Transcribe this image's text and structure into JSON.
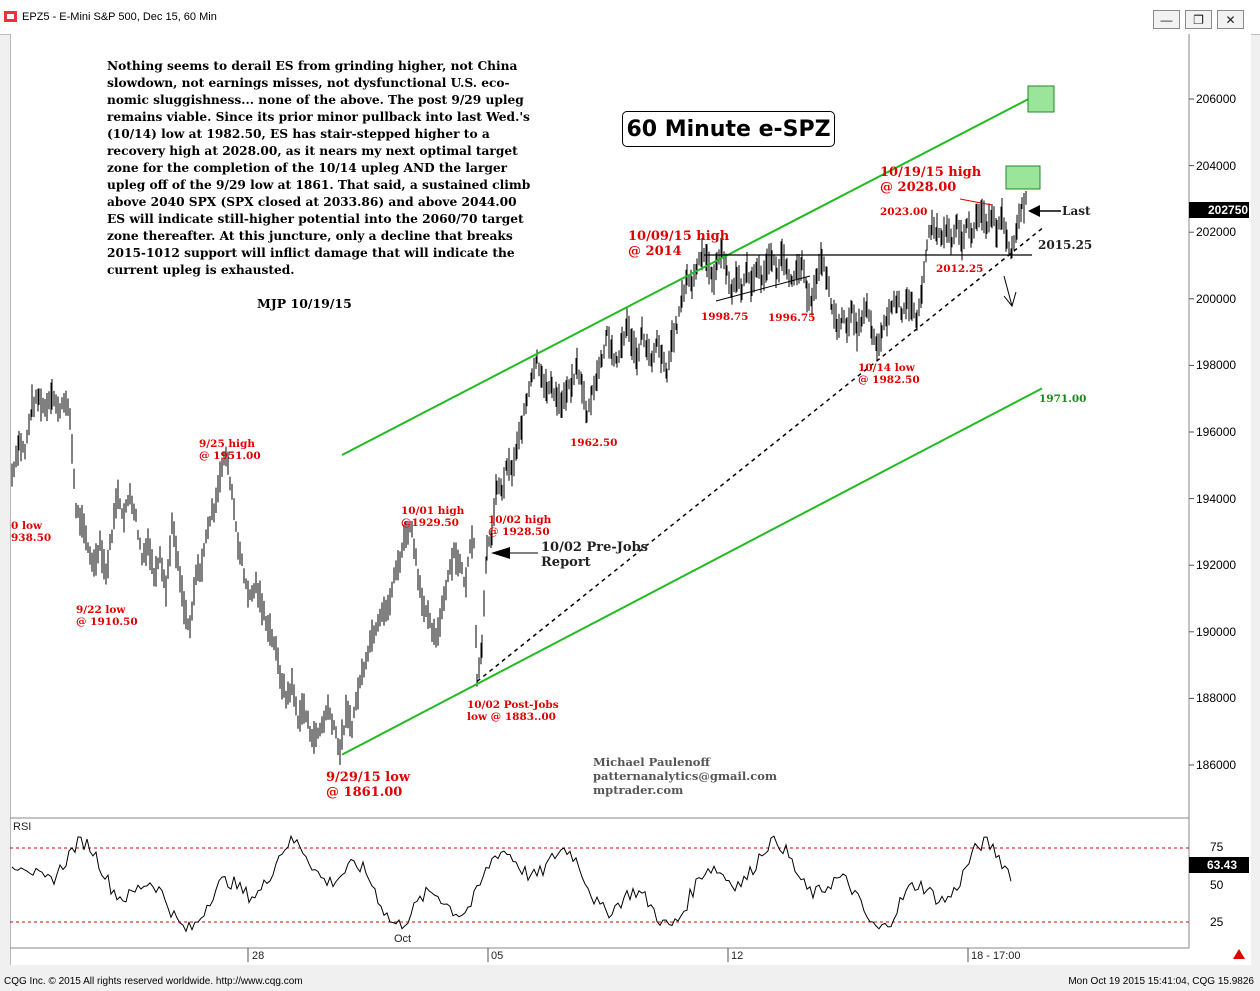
{
  "window": {
    "title": "EPZ5 - E-Mini S&P 500, Dec 15, 60 Min"
  },
  "commentary": {
    "body": "Nothing seems to derail ES from grinding higher, not China slowdown, not earnings misses, not dysfunctional U.S. eco-nomic sluggishness... none of the above. The post 9/29 upleg remains viable. Since its prior minor pullback into last Wed.'s (10/14) low at 1982.50, ES has stair-stepped higher to a recovery high at 2028.00, as it nears my next optimal target zone for the completion of the 10/14 upleg AND the larger upleg off of the 9/29 low at 1861. That said, a sustained climb above 2040 SPX (SPX closed at 2033.86) and above 2044.00 ES will indicate still-higher potential into the 2060/70 target zone thereafter. At this juncture, only a decline that breaks 2015-1012 support will inflict damage that will indicate the current upleg is exhausted.",
    "signature": "MJP 10/19/15"
  },
  "chart_title": "60 Minute e-SPZ",
  "credit": {
    "name": "Michael Paulenoff",
    "email": "patternanalytics@gmail.com",
    "site": "mptrader.com"
  },
  "annotations": {
    "a_0low_1": "0 low",
    "a_0low_2": "938.50",
    "a_922_1": "9/22 low",
    "a_922_2": "@ 1910.50",
    "a_925_1": "9/25 high",
    "a_925_2": "@ 1951.00",
    "a_929_1": "9/29/15 low",
    "a_929_2": "@ 1861.00",
    "a_1001_1": "10/01 high",
    "a_1001_2": "@1929.50",
    "a_1002h_1": "10/02 high",
    "a_1002h_2": "@ 1928.50",
    "a_1002pre_1": "10/02 Pre-Jobs",
    "a_1002pre_2": "Report",
    "a_1002post_1": "10/02 Post-Jobs",
    "a_1002post_2": "low @ 1883..00",
    "a_196250": "1962.50",
    "a_1009_1": "10/09/15 high",
    "a_1009_2": "@ 2014",
    "a_199875": "1998.75",
    "a_199675": "1996.75",
    "a_1014_1": "10/14 low",
    "a_1014_2": "@ 1982.50",
    "a_1019_1": "10/19/15 high",
    "a_1019_2": "@ 2028.00",
    "a_2023": "2023.00",
    "a_201225": "2012.25",
    "a_201525": "2015.25",
    "a_1971": "1971.00",
    "a_last": "Last"
  },
  "rsi": {
    "label": "RSI",
    "levels": [
      "75",
      "50",
      "25"
    ],
    "last": "63.43"
  },
  "status": {
    "left": "CQG Inc. © 2015 All rights reserved worldwide. http://www.cqg.com",
    "right": "Mon Oct 19 2015 15:41:04, CQG 15.9826"
  },
  "colors": {
    "channel": "#22bb22",
    "annotation": "#e00000",
    "last_box": "#000000"
  },
  "chart_data": {
    "type": "line",
    "title": "60 Minute e-SPZ",
    "symbol": "EPZ5 - E-Mini S&P 500, Dec 15, 60 Min",
    "x_ticks": [
      "28",
      "Oct",
      "05",
      "12",
      "18 - 17:00"
    ],
    "y_ticks": [
      "206000",
      "204000",
      "202000",
      "200000",
      "198000",
      "196000",
      "194000",
      "192000",
      "190000",
      "188000",
      "186000"
    ],
    "ylim": [
      1855,
      2075
    ],
    "last_value_label": "202750",
    "grid": false,
    "series": [
      {
        "name": "",
        "points": [
          [
            0,
            1945
          ],
          [
            7,
            1955
          ],
          [
            13,
            1952
          ],
          [
            20,
            1966
          ],
          [
            27,
            1968
          ],
          [
            33,
            1965
          ],
          [
            40,
            1970
          ],
          [
            46,
            1964
          ],
          [
            52,
            1968
          ],
          [
            58,
            1962
          ],
          [
            64,
            1935
          ],
          [
            70,
            1930
          ],
          [
            76,
            1923
          ],
          [
            82,
            1918
          ],
          [
            88,
            1925
          ],
          [
            94,
            1915
          ],
          [
            100,
            1928
          ],
          [
            106,
            1940
          ],
          [
            112,
            1932
          ],
          [
            118,
            1940
          ],
          [
            124,
            1932
          ],
          [
            130,
            1920
          ],
          [
            136,
            1925
          ],
          [
            142,
            1915
          ],
          [
            148,
            1922
          ],
          [
            154,
            1910
          ],
          [
            160,
            1930
          ],
          [
            166,
            1918
          ],
          [
            172,
            1905
          ],
          [
            178,
            1898
          ],
          [
            184,
            1915
          ],
          [
            190,
            1918
          ],
          [
            196,
            1930
          ],
          [
            202,
            1935
          ],
          [
            208,
            1945
          ],
          [
            214,
            1951
          ],
          [
            220,
            1940
          ],
          [
            226,
            1925
          ],
          [
            232,
            1915
          ],
          [
            238,
            1908
          ],
          [
            244,
            1912
          ],
          [
            250,
            1905
          ],
          [
            256,
            1900
          ],
          [
            262,
            1895
          ],
          [
            268,
            1885
          ],
          [
            274,
            1878
          ],
          [
            280,
            1882
          ],
          [
            286,
            1872
          ],
          [
            292,
            1875
          ],
          [
            298,
            1868
          ],
          [
            304,
            1866
          ],
          [
            310,
            1870
          ],
          [
            316,
            1875
          ],
          [
            322,
            1870
          ],
          [
            328,
            1862
          ],
          [
            334,
            1873
          ],
          [
            340,
            1870
          ],
          [
            346,
            1880
          ],
          [
            352,
            1888
          ],
          [
            358,
            1895
          ],
          [
            364,
            1900
          ],
          [
            370,
            1905
          ],
          [
            376,
            1904
          ],
          [
            382,
            1914
          ],
          [
            388,
            1920
          ],
          [
            394,
            1928
          ],
          [
            400,
            1929
          ],
          [
            406,
            1915
          ],
          [
            412,
            1905
          ],
          [
            418,
            1900
          ],
          [
            424,
            1895
          ],
          [
            430,
            1905
          ],
          [
            436,
            1915
          ],
          [
            442,
            1922
          ],
          [
            448,
            1918
          ],
          [
            454,
            1912
          ],
          [
            458,
            1925
          ],
          [
            462,
            1926
          ],
          [
            465,
            1883
          ],
          [
            470,
            1895
          ],
          [
            475,
            1922
          ],
          [
            480,
            1928
          ],
          [
            485,
            1942
          ],
          [
            490,
            1940
          ],
          [
            495,
            1948
          ],
          [
            500,
            1946
          ],
          [
            505,
            1953
          ],
          [
            510,
            1960
          ],
          [
            515,
            1968
          ],
          [
            520,
            1976
          ],
          [
            525,
            1980
          ],
          [
            530,
            1975
          ],
          [
            535,
            1970
          ],
          [
            540,
            1972
          ],
          [
            545,
            1968
          ],
          [
            550,
            1966
          ],
          [
            555,
            1970
          ],
          [
            560,
            1972
          ],
          [
            565,
            1978
          ],
          [
            570,
            1972
          ],
          [
            575,
            1962
          ],
          [
            580,
            1970
          ],
          [
            585,
            1975
          ],
          [
            590,
            1980
          ],
          [
            595,
            1988
          ],
          [
            600,
            1982
          ],
          [
            605,
            1978
          ],
          [
            610,
            1985
          ],
          [
            615,
            1990
          ],
          [
            620,
            1985
          ],
          [
            625,
            1980
          ],
          [
            630,
            1988
          ],
          [
            635,
            1983
          ],
          [
            640,
            1978
          ],
          [
            645,
            1985
          ],
          [
            650,
            1980
          ],
          [
            655,
            1975
          ],
          [
            660,
            1986
          ],
          [
            665,
            1990
          ],
          [
            670,
            1998
          ],
          [
            675,
            2005
          ],
          [
            680,
            2002
          ],
          [
            685,
            2008
          ],
          [
            690,
            2012
          ],
          [
            695,
            2010
          ],
          [
            700,
            2003
          ],
          [
            705,
            2008
          ],
          [
            710,
            2014
          ],
          [
            715,
            2005
          ],
          [
            720,
            2000
          ],
          [
            725,
            2005
          ],
          [
            730,
            2001
          ],
          [
            735,
            2006
          ],
          [
            740,
            2002
          ],
          [
            745,
            2008
          ],
          [
            750,
            2004
          ],
          [
            755,
            2008
          ],
          [
            760,
            2010
          ],
          [
            765,
            2005
          ],
          [
            770,
            2012
          ],
          [
            775,
            2008
          ],
          [
            780,
            2002
          ],
          [
            785,
            2006
          ],
          [
            790,
            2008
          ],
          [
            795,
            2000
          ],
          [
            800,
            1998
          ],
          [
            805,
            2004
          ],
          [
            810,
            2010
          ],
          [
            815,
            2004
          ],
          [
            820,
            1995
          ],
          [
            825,
            1990
          ],
          [
            830,
            1992
          ],
          [
            835,
            1990
          ],
          [
            840,
            1994
          ],
          [
            845,
            1988
          ],
          [
            850,
            1992
          ],
          [
            855,
            1995
          ],
          [
            860,
            1988
          ],
          [
            865,
            1982
          ],
          [
            870,
            1988
          ],
          [
            875,
            1992
          ],
          [
            880,
            1996
          ],
          [
            885,
            1998
          ],
          [
            890,
            1994
          ],
          [
            895,
            1998
          ],
          [
            900,
            1995
          ],
          [
            905,
            1990
          ],
          [
            910,
            2000
          ],
          [
            915,
            2015
          ],
          [
            920,
            2020
          ],
          [
            925,
            2018
          ],
          [
            930,
            2016
          ],
          [
            935,
            2019
          ],
          [
            940,
            2014
          ],
          [
            945,
            2020
          ],
          [
            950,
            2015
          ],
          [
            955,
            2020
          ],
          [
            960,
            2018
          ],
          [
            965,
            2022
          ],
          [
            970,
            2023
          ],
          [
            975,
            2020
          ],
          [
            980,
            2024
          ],
          [
            985,
            2018
          ],
          [
            990,
            2024
          ],
          [
            995,
            2016
          ],
          [
            1000,
            2012
          ],
          [
            1005,
            2020
          ],
          [
            1010,
            2026
          ],
          [
            1015,
            2027
          ]
        ]
      }
    ],
    "overlays": [
      {
        "name": "",
        "type": "channel-line",
        "from": [
          330,
          1951
        ],
        "to": [
          1030,
          2060
        ]
      },
      {
        "name": "",
        "type": "channel-line",
        "from": [
          330,
          1861
        ],
        "to": [
          1030,
          1971
        ]
      },
      {
        "name": "",
        "type": "dashed-trend",
        "from": [
          465,
          1883
        ],
        "to": [
          1030,
          2019
        ]
      }
    ],
    "rsi": {
      "levels": [
        75,
        50,
        25
      ],
      "last": 63.43
    }
  }
}
